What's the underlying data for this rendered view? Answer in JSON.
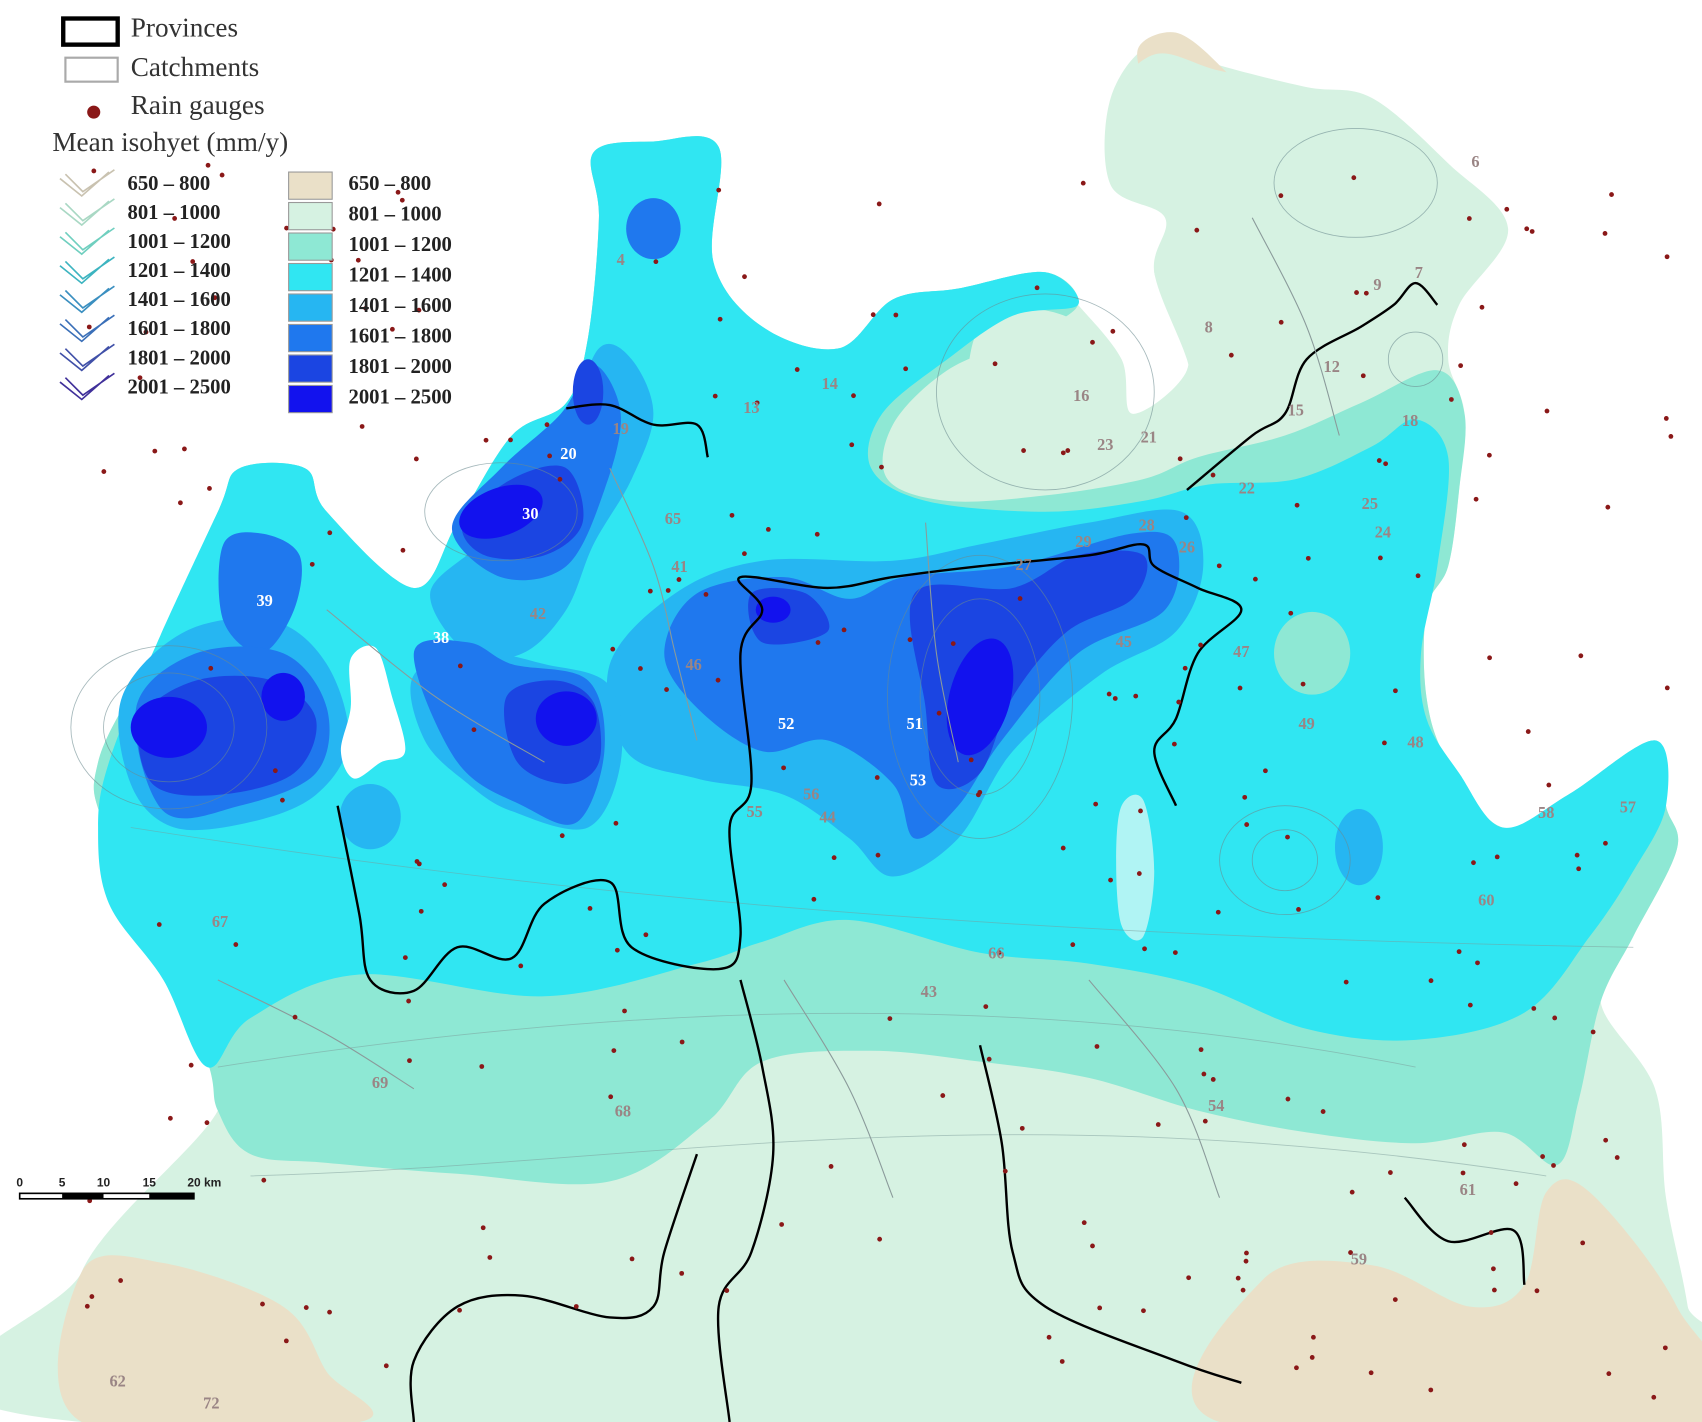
{
  "legend": {
    "provinces": "Provinces",
    "catchments": "Catchments",
    "rain_gauges": "Rain gauges",
    "title": "Mean isohyet (mm/y)",
    "isohyet_lines": [
      {
        "label": "650 – 800",
        "color": "#c9c2b0"
      },
      {
        "label": "801 – 1000",
        "color": "#a9d8c4"
      },
      {
        "label": "1001 – 1200",
        "color": "#6fcfbf"
      },
      {
        "label": "1201 – 1400",
        "color": "#3cb4c0"
      },
      {
        "label": "1401 – 1600",
        "color": "#3a8fc0"
      },
      {
        "label": "1601 – 1800",
        "color": "#3a6fb8"
      },
      {
        "label": "1801 – 2000",
        "color": "#4050a8"
      },
      {
        "label": "2001 – 2500",
        "color": "#40309a"
      }
    ],
    "isohyet_fills": [
      {
        "label": "650 – 800",
        "color": "#eae0c8"
      },
      {
        "label": "801 – 1000",
        "color": "#d6f2e2"
      },
      {
        "label": "1001 – 1200",
        "color": "#8ee8d4"
      },
      {
        "label": "1201 – 1400",
        "color": "#30e6f2"
      },
      {
        "label": "1401 – 1600",
        "color": "#26b6f2"
      },
      {
        "label": "1601 – 1800",
        "color": "#1f78ee"
      },
      {
        "label": "1801 – 2000",
        "color": "#1b45e2"
      },
      {
        "label": "2001 – 2500",
        "color": "#1212ee"
      }
    ]
  },
  "catchment_labels": [
    "4",
    "6",
    "7",
    "8",
    "9",
    "12",
    "13",
    "14",
    "15",
    "16",
    "18",
    "19",
    "20",
    "21",
    "22",
    "23",
    "24",
    "25",
    "26",
    "27",
    "28",
    "29",
    "30",
    "38",
    "39",
    "41",
    "42",
    "43",
    "44",
    "45",
    "46",
    "47",
    "48",
    "49",
    "51",
    "52",
    "53",
    "54",
    "55",
    "56",
    "57",
    "58",
    "59",
    "60",
    "61",
    "62",
    "65",
    "66",
    "67",
    "68",
    "69",
    "72"
  ],
  "scale_bar": {
    "labels": [
      "0",
      "5",
      "10",
      "15",
      "20 km"
    ]
  }
}
